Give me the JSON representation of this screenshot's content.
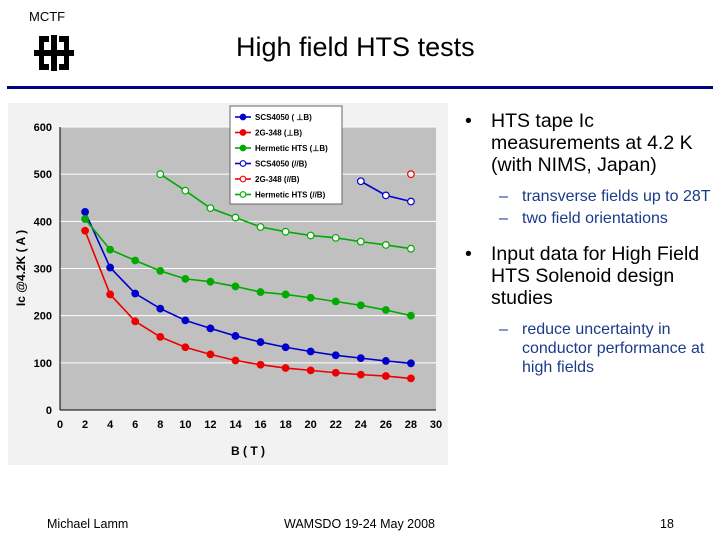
{
  "header": {
    "org": "MCTF",
    "title": "High field HTS tests"
  },
  "bullets": [
    {
      "text": "HTS tape Ic measurements at 4.2 K (with NIMS, Japan)",
      "sub": [
        "transverse fields up to 28T",
        "two field orientations"
      ]
    },
    {
      "text": "Input data for High Field HTS Solenoid design studies",
      "sub": [
        "reduce uncertainty in conductor performance at high fields"
      ]
    }
  ],
  "footer": {
    "author": "Michael Lamm",
    "event": "WAMSDO 19-24 May 2008",
    "page": "18"
  },
  "colors": {
    "accent_rule": "#000080",
    "plot_bg": "#c0c0c0",
    "sub_bullet": "#1a3a8a"
  },
  "chart_data": {
    "type": "line",
    "xlabel": "B ( T )",
    "ylabel": "Ic @4.2K ( A )",
    "xlim": [
      0,
      30
    ],
    "ylim": [
      0,
      600
    ],
    "xticks": [
      0,
      2,
      4,
      6,
      8,
      10,
      12,
      14,
      16,
      18,
      20,
      22,
      24,
      26,
      28,
      30
    ],
    "yticks": [
      0,
      100,
      200,
      300,
      400,
      500,
      600
    ],
    "grid": true,
    "legend_position": "top-center",
    "series": [
      {
        "name": "SCS4050 ( ⊥B)",
        "color": "#0000cc",
        "filled": true,
        "x": [
          2,
          4,
          6,
          8,
          10,
          12,
          14,
          16,
          18,
          20,
          22,
          24,
          26,
          28
        ],
        "y": [
          420,
          302,
          247,
          215,
          190,
          173,
          157,
          144,
          133,
          124,
          116,
          110,
          104,
          99
        ]
      },
      {
        "name": "2G-348 (⊥B)",
        "color": "#ee0000",
        "filled": true,
        "x": [
          2,
          4,
          6,
          8,
          10,
          12,
          14,
          16,
          18,
          20,
          22,
          24,
          26,
          28
        ],
        "y": [
          380,
          245,
          188,
          155,
          133,
          118,
          105,
          96,
          89,
          84,
          79,
          75,
          72,
          67
        ]
      },
      {
        "name": "Hermetic HTS (⊥B)",
        "color": "#00aa00",
        "filled": true,
        "x": [
          2,
          4,
          6,
          8,
          10,
          12,
          14,
          16,
          18,
          20,
          22,
          24,
          26,
          28
        ],
        "y": [
          405,
          340,
          317,
          295,
          278,
          272,
          262,
          250,
          245,
          238,
          230,
          222,
          212,
          200
        ]
      },
      {
        "name": "SCS4050 (//B)",
        "color": "#0000cc",
        "filled": false,
        "x": [
          24,
          26,
          28
        ],
        "y": [
          485,
          455,
          442
        ]
      },
      {
        "name": "2G-348 (//B)",
        "color": "#ee0000",
        "filled": false,
        "x": [
          28
        ],
        "y": [
          500
        ]
      },
      {
        "name": "Hermetic HTS (//B)",
        "color": "#00aa00",
        "filled": false,
        "x": [
          8,
          10,
          12,
          14,
          16,
          18,
          20,
          22,
          24,
          26,
          28
        ],
        "y": [
          500,
          465,
          428,
          408,
          388,
          378,
          370,
          365,
          357,
          350,
          342
        ]
      }
    ]
  }
}
